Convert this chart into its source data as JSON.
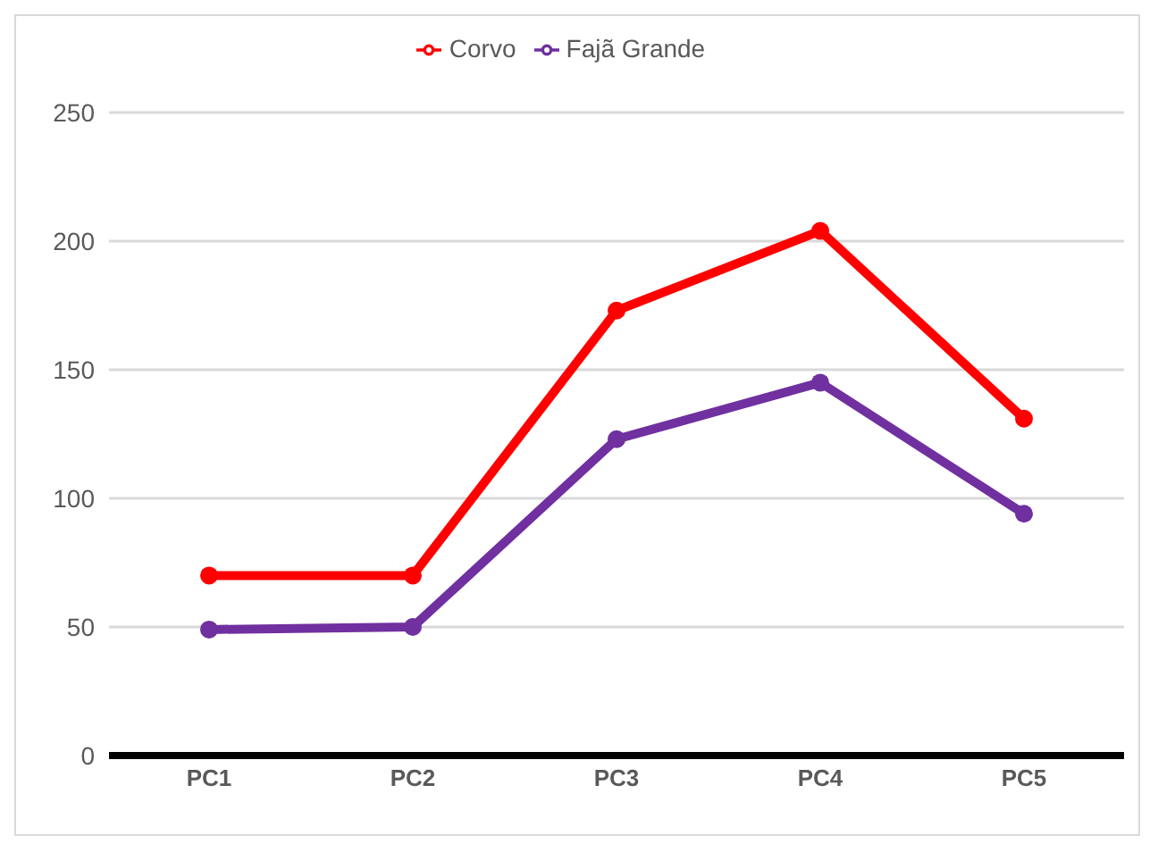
{
  "chart_data": {
    "type": "line",
    "categories": [
      "PC1",
      "PC2",
      "PC3",
      "PC4",
      "PC5"
    ],
    "series": [
      {
        "name": "Fajã Grande",
        "color": "#7030a0",
        "values": [
          49,
          50,
          123,
          145,
          94
        ]
      },
      {
        "name": "Corvo",
        "color": "#ff0000",
        "values": [
          70,
          70,
          173,
          204,
          131
        ]
      }
    ],
    "ylim": [
      0,
      250
    ],
    "yticks": [
      0,
      50,
      100,
      150,
      200,
      250
    ],
    "grid": "y",
    "legend": "top",
    "marker": "circle",
    "line_style": "solid"
  }
}
